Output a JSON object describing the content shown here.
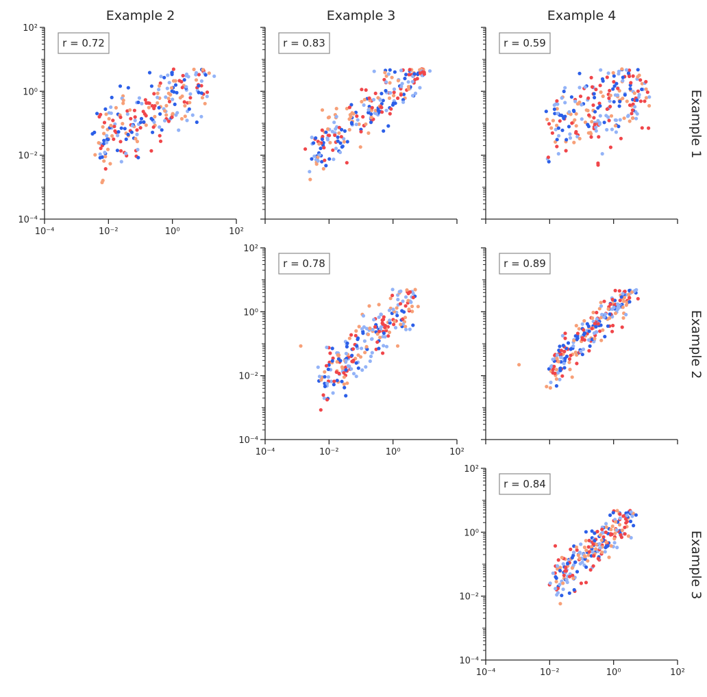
{
  "colors": {
    "series": [
      "#2c5fe8",
      "#93b3f7",
      "#f0464a",
      "#f7a078"
    ],
    "axis": "#262626",
    "annotation_border": "#8a8a8a"
  },
  "chart_data": {
    "type": "scatter",
    "layout": "pairwise-grid",
    "x_scale": "log",
    "y_scale": "log",
    "xlim": [
      0.0001,
      100
    ],
    "ylim": [
      0.0001,
      100
    ],
    "tick_values": [
      0.0001,
      0.01,
      1,
      100
    ],
    "tick_labels": [
      "10⁻⁴",
      "10⁻²",
      "10⁰",
      "10²"
    ],
    "column_titles": [
      "Example 2",
      "Example 3",
      "Example 4"
    ],
    "row_titles": [
      "Example 1",
      "Example 2",
      "Example 3"
    ],
    "panels": [
      {
        "row": 0,
        "col": 0,
        "annotation": "r = 0.72",
        "r": 0.72,
        "cloud": {
          "xmin": -2.3,
          "xmax": 1.0,
          "slope": 0.55,
          "mid": [
            -0.7,
            -0.7
          ],
          "spread": 0.55,
          "seed": 11
        },
        "extra_points": [
          {
            "x": 0.0063,
            "y": 0.0014,
            "series": 3
          }
        ]
      },
      {
        "row": 0,
        "col": 1,
        "annotation": "r = 0.83",
        "r": 0.83,
        "cloud": {
          "xmin": -2.5,
          "xmax": 1.0,
          "slope": 0.75,
          "mid": [
            -0.9,
            -0.7
          ],
          "spread": 0.4,
          "seed": 23
        },
        "extra_points": [
          {
            "x": 0.036,
            "y": 0.0058,
            "series": 2
          }
        ]
      },
      {
        "row": 0,
        "col": 2,
        "annotation": "r = 0.59",
        "r": 0.59,
        "cloud": {
          "xmin": -2.0,
          "xmax": 1.0,
          "slope": 0.45,
          "mid": [
            -0.6,
            -0.6
          ],
          "spread": 0.6,
          "seed": 37
        },
        "extra_points": []
      },
      {
        "row": 1,
        "col": 1,
        "annotation": "r = 0.78",
        "r": 0.78,
        "cloud": {
          "xmin": -2.3,
          "xmax": 0.7,
          "slope": 0.85,
          "mid": [
            -0.8,
            -0.9
          ],
          "spread": 0.45,
          "seed": 41
        },
        "extra_points": [
          {
            "x": 0.0013,
            "y": 0.085,
            "series": 3
          },
          {
            "x": 0.037,
            "y": 0.0058,
            "series": 3
          }
        ]
      },
      {
        "row": 1,
        "col": 2,
        "annotation": "r = 0.89",
        "r": 0.89,
        "cloud": {
          "xmin": -2.0,
          "xmax": 0.6,
          "slope": 0.95,
          "mid": [
            -0.6,
            -0.5
          ],
          "spread": 0.3,
          "seed": 53
        },
        "extra_points": [
          {
            "x": 0.0011,
            "y": 0.022,
            "series": 3
          }
        ]
      },
      {
        "row": 2,
        "col": 2,
        "annotation": "r = 0.84",
        "r": 0.84,
        "cloud": {
          "xmin": -1.9,
          "xmax": 0.6,
          "slope": 0.85,
          "mid": [
            -0.6,
            -0.5
          ],
          "spread": 0.35,
          "seed": 67
        },
        "extra_points": []
      }
    ]
  }
}
